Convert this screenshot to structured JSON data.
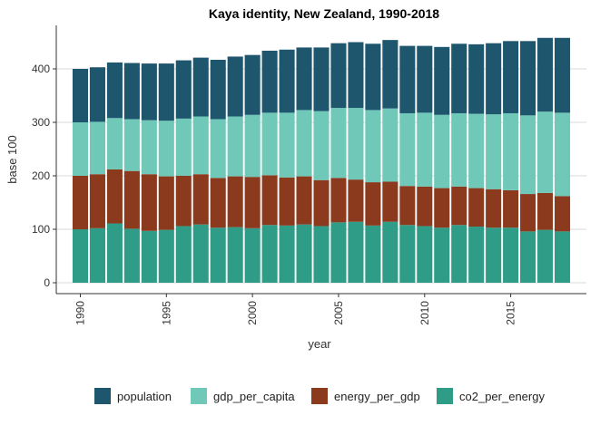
{
  "chart_data": {
    "type": "bar",
    "stacked": true,
    "title": "Kaya identity, New Zealand, 1990-2018",
    "xlabel": "year",
    "ylabel": "base 100",
    "xlim": [
      1989.5,
      2018.5
    ],
    "ylim": [
      0,
      480
    ],
    "x": [
      1990,
      1991,
      1992,
      1993,
      1994,
      1995,
      1996,
      1997,
      1998,
      1999,
      2000,
      2001,
      2002,
      2003,
      2004,
      2005,
      2006,
      2007,
      2008,
      2009,
      2010,
      2011,
      2012,
      2013,
      2014,
      2015,
      2016,
      2017,
      2018
    ],
    "x_ticks": [
      1990,
      1995,
      2000,
      2005,
      2010,
      2015
    ],
    "y_ticks": [
      0,
      100,
      200,
      300,
      400
    ],
    "grid": "horizontal",
    "legend_position": "bottom",
    "series": [
      {
        "name": "co2_per_energy",
        "color": "#2e9c86",
        "values": [
          100,
          102,
          111,
          101,
          97,
          99,
          106,
          109,
          103,
          104,
          102,
          108,
          107,
          109,
          106,
          113,
          114,
          107,
          114,
          108,
          106,
          103,
          108,
          105,
          103,
          103,
          96,
          99,
          96
        ]
      },
      {
        "name": "energy_per_gdp",
        "color": "#8b3a1e",
        "values": [
          100,
          101,
          101,
          108,
          106,
          100,
          94,
          94,
          93,
          95,
          96,
          93,
          90,
          90,
          86,
          83,
          79,
          81,
          75,
          73,
          74,
          74,
          72,
          72,
          72,
          70,
          70,
          69,
          66
        ]
      },
      {
        "name": "gdp_per_capita",
        "color": "#6fc8b8",
        "values": [
          100,
          98,
          96,
          97,
          101,
          104,
          107,
          108,
          110,
          112,
          116,
          117,
          121,
          124,
          129,
          131,
          134,
          135,
          137,
          136,
          138,
          137,
          137,
          139,
          140,
          144,
          147,
          152,
          156
        ]
      },
      {
        "name": "population",
        "color": "#1e566e",
        "values": [
          100,
          102,
          104,
          105,
          106,
          107,
          109,
          110,
          111,
          112,
          112,
          116,
          118,
          117,
          119,
          121,
          123,
          124,
          128,
          126,
          125,
          127,
          130,
          130,
          133,
          135,
          139,
          138,
          140
        ]
      }
    ],
    "legend_order": [
      "population",
      "gdp_per_capita",
      "energy_per_gdp",
      "co2_per_energy"
    ]
  }
}
